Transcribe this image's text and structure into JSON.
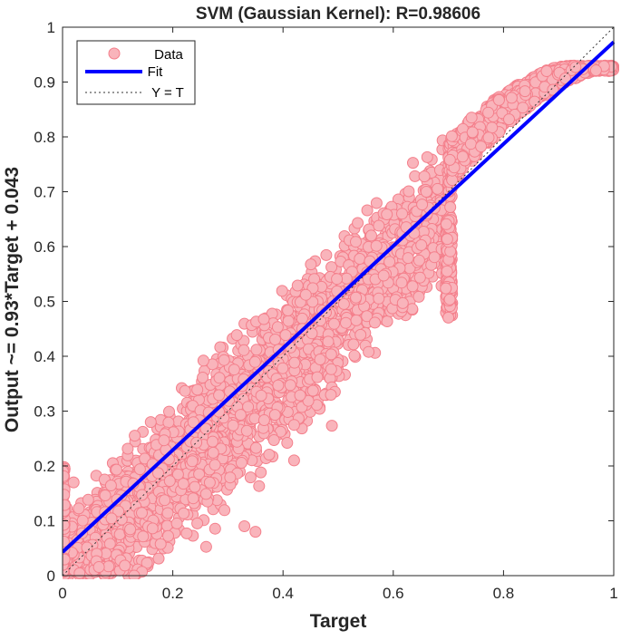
{
  "chart_data": {
    "type": "scatter",
    "title": "SVM (Gaussian Kernel): R=0.98606",
    "xlabel": "Target",
    "ylabel": "Output ~= 0.93*Target + 0.043",
    "xlim": [
      0,
      1
    ],
    "ylim": [
      0,
      1
    ],
    "xticks": [
      0,
      0.2,
      0.4,
      0.6,
      0.8,
      1
    ],
    "xtick_labels": [
      "0",
      "0.2",
      "0.4",
      "0.6",
      "0.8",
      "1"
    ],
    "yticks": [
      0,
      0.1,
      0.2,
      0.3,
      0.4,
      0.5,
      0.6,
      0.7,
      0.8,
      0.9,
      1
    ],
    "ytick_labels": [
      "0",
      "0.1",
      "0.2",
      "0.3",
      "0.4",
      "0.5",
      "0.6",
      "0.7",
      "0.8",
      "0.9",
      "1"
    ],
    "grid": false,
    "legend_position": "top-left",
    "series": [
      {
        "name": "Data",
        "kind": "scatter",
        "marker": "circle",
        "color": "#f47f8b",
        "edge_color": "#e0606c",
        "point_groups": [
          {
            "x_range": [
              0.0,
              0.7
            ],
            "y_at_x_min": [
              0.0,
              0.2
            ],
            "y_at_x_max": [
              0.47,
              0.65
            ],
            "note": "main band"
          },
          {
            "x_range": [
              0.7,
              1.0
            ],
            "y_at_x_min": [
              0.7,
              0.79
            ],
            "y_at_x_max": [
              0.9,
              0.93
            ],
            "note": "upper branch"
          }
        ]
      },
      {
        "name": "Fit",
        "kind": "line",
        "color": "#0000ff",
        "style": "solid",
        "slope": 0.93,
        "intercept": 0.043,
        "x": [
          0,
          1
        ],
        "y": [
          0.043,
          0.973
        ]
      },
      {
        "name": "Y = T",
        "kind": "line",
        "color": "#000000",
        "style": "dotted",
        "x": [
          0,
          1
        ],
        "y": [
          0,
          1
        ]
      }
    ],
    "legend": [
      "Data",
      "Fit",
      "Y = T"
    ]
  },
  "colors": {
    "data_fill": "#f9b4bb",
    "data_stroke": "#f47f8b",
    "fit": "#0000ff",
    "identity": "#333333",
    "axes": "#262626"
  }
}
